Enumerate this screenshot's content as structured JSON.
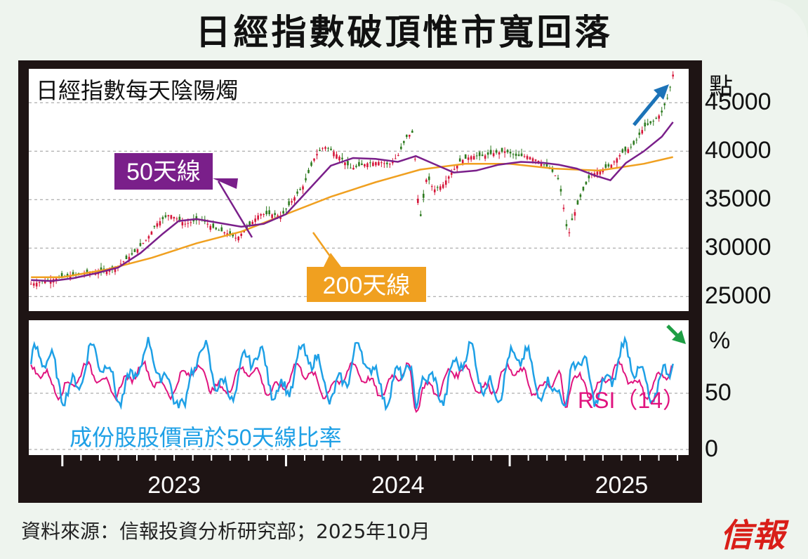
{
  "title": "日經指數破頂惟市寬回落",
  "source": "資料來源：信報投資分析研究部；2025年10月",
  "logo": "信報",
  "chart_data": [
    {
      "type": "line",
      "title": "日經指數每天陰陽燭",
      "ylabel": "點",
      "ylim": [
        23500,
        48500
      ],
      "yticks": [
        "45000",
        "40000",
        "35000",
        "30000",
        "25000"
      ],
      "xlim": [
        2022.85,
        2025.8
      ],
      "xticks": [
        "2023",
        "2024",
        "2025"
      ],
      "series": [
        {
          "name": "日經指數",
          "color": "#2d7a1f",
          "x": [
            2022.86,
            2022.92,
            2023.0,
            2023.08,
            2023.16,
            2023.24,
            2023.32,
            2023.38,
            2023.42,
            2023.48,
            2023.55,
            2023.62,
            2023.68,
            2023.74,
            2023.78,
            2023.83,
            2023.88,
            2023.93,
            2023.98,
            2024.03,
            2024.08,
            2024.13,
            2024.17,
            2024.21,
            2024.25,
            2024.29,
            2024.33,
            2024.37,
            2024.42,
            2024.46,
            2024.5,
            2024.54,
            2024.57,
            2024.585,
            2024.6,
            2024.63,
            2024.66,
            2024.7,
            2024.74,
            2024.78,
            2024.83,
            2024.88,
            2024.93,
            2024.98,
            2025.03,
            2025.08,
            2025.13,
            2025.18,
            2025.22,
            2025.25,
            2025.26,
            2025.28,
            2025.32,
            2025.36,
            2025.4,
            2025.45,
            2025.5,
            2025.55,
            2025.6,
            2025.64,
            2025.68,
            2025.71,
            2025.73
          ],
          "values": [
            26300,
            26600,
            27000,
            27300,
            27500,
            28000,
            29500,
            31000,
            32500,
            33500,
            32500,
            33000,
            32000,
            31500,
            31000,
            32200,
            33500,
            33500,
            33300,
            35000,
            36500,
            39500,
            40500,
            40000,
            39200,
            38200,
            38500,
            38800,
            38900,
            38600,
            39500,
            41500,
            42000,
            36000,
            33000,
            37500,
            36000,
            36500,
            37800,
            39000,
            39500,
            39500,
            39800,
            40000,
            39500,
            39500,
            39000,
            38200,
            37000,
            33000,
            31000,
            33000,
            35500,
            37500,
            38000,
            38500,
            39800,
            40500,
            42500,
            43000,
            44000,
            45800,
            47900
          ]
        },
        {
          "name": "50天線",
          "color": "#7a1f8a",
          "x": [
            2022.86,
            2022.95,
            2023.05,
            2023.15,
            2023.25,
            2023.35,
            2023.45,
            2023.52,
            2023.6,
            2023.7,
            2023.8,
            2023.9,
            2024.0,
            2024.1,
            2024.2,
            2024.3,
            2024.4,
            2024.5,
            2024.58,
            2024.65,
            2024.75,
            2024.85,
            2024.95,
            2025.05,
            2025.15,
            2025.22,
            2025.3,
            2025.38,
            2025.45,
            2025.52,
            2025.6,
            2025.68,
            2025.73
          ],
          "values": [
            26700,
            26600,
            26900,
            27400,
            28000,
            29500,
            31500,
            32800,
            33000,
            32600,
            32200,
            32500,
            33500,
            36000,
            38500,
            39300,
            39200,
            38900,
            39500,
            38800,
            37800,
            38000,
            38600,
            38900,
            38800,
            38600,
            38200,
            37500,
            37000,
            38800,
            40000,
            41500,
            43000
          ]
        },
        {
          "name": "200天線",
          "color": "#f0a020",
          "x": [
            2022.86,
            2023.0,
            2023.2,
            2023.4,
            2023.6,
            2023.8,
            2024.0,
            2024.2,
            2024.4,
            2024.6,
            2024.8,
            2025.0,
            2025.2,
            2025.4,
            2025.6,
            2025.73
          ],
          "values": [
            27000,
            27000,
            27800,
            29000,
            30500,
            31700,
            33500,
            35300,
            36800,
            38100,
            38700,
            38700,
            38200,
            38000,
            38700,
            39400
          ]
        }
      ]
    },
    {
      "type": "line",
      "ylabel": "%",
      "ylim": [
        -5,
        115
      ],
      "yticks": [
        "50",
        "0"
      ],
      "series": [
        {
          "name": "RSI（14）",
          "color": "#e0147f"
        },
        {
          "name": "成份股股價高於50天線比率",
          "color": "#1ea0e6"
        }
      ]
    }
  ],
  "labels": {
    "ma50": "50天線",
    "ma200": "200天線"
  }
}
